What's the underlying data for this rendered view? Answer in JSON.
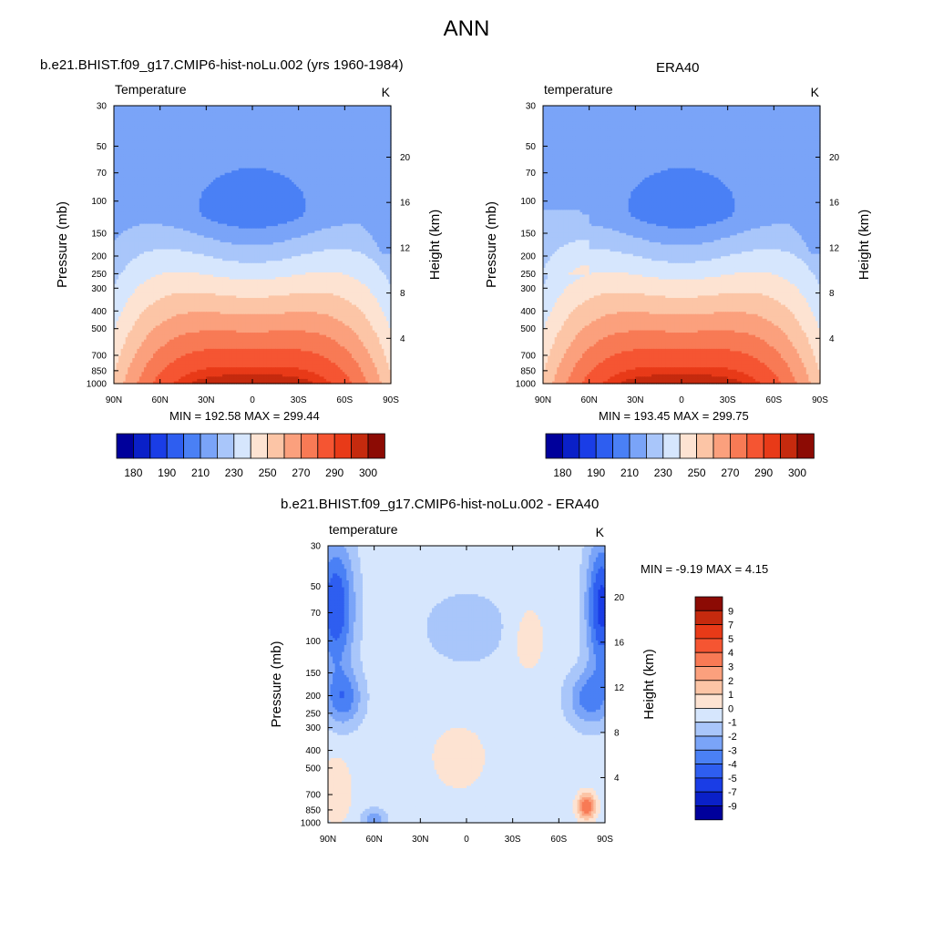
{
  "figure": {
    "title": "ANN"
  },
  "labels": {
    "yleft": "Pressure (mb)",
    "yright": "Height (km)",
    "units": "K"
  },
  "panels": {
    "model": {
      "title": "b.e21.BHIST.f09_g17.CMIP6-hist-noLu.002 (yrs 1960-1984)",
      "field_label": "Temperature",
      "minmax": "MIN = 192.58  MAX = 299.44"
    },
    "obs": {
      "title": "ERA40",
      "field_label": "temperature",
      "minmax": "MIN = 193.45  MAX = 299.75"
    },
    "diff": {
      "title": "b.e21.BHIST.f09_g17.CMIP6-hist-noLu.002 - ERA40",
      "field_label": "temperature",
      "minmax": "MIN =  -9.19  MAX =   4.15"
    }
  },
  "chart_data": [
    {
      "type": "heatmap",
      "title": "b.e21.BHIST.f09_g17.CMIP6-hist-noLu.002 (yrs 1960-1984)",
      "field": "Temperature",
      "units": "K",
      "x_ticks": [
        "90N",
        "60N",
        "30N",
        "0",
        "30S",
        "60S",
        "90S"
      ],
      "x_lat": [
        90,
        60,
        30,
        0,
        -30,
        -60,
        -90
      ],
      "y_ticks": [
        "30",
        "50",
        "70",
        "100",
        "150",
        "200",
        "250",
        "300",
        "400",
        "500",
        "700",
        "850",
        "1000"
      ],
      "y_values": [
        30,
        50,
        70,
        100,
        150,
        200,
        250,
        300,
        400,
        500,
        700,
        850,
        1000
      ],
      "y_scale": "log",
      "ylim": [
        30,
        1000
      ],
      "y2_ticks": [
        "4",
        "8",
        "12",
        "16",
        "20"
      ],
      "ylabel": "Pressure (mb)",
      "y2label": "Height (km)",
      "min": 192.58,
      "max": 299.44,
      "colorbar": {
        "tick_labels": [
          "180",
          "190",
          "210",
          "230",
          "250",
          "270",
          "290",
          "300"
        ],
        "colors": [
          "#00009b",
          "#0a20c8",
          "#1a3de6",
          "#2e5ef0",
          "#4a80f5",
          "#7aa4f8",
          "#a9c6fa",
          "#d6e6fd",
          "#fde3d2",
          "#fcc5a6",
          "#fba07d",
          "#f87a55",
          "#f55532",
          "#e83a18",
          "#c52a0e",
          "#8c0b04"
        ]
      }
    },
    {
      "type": "heatmap",
      "title": "ERA40",
      "field": "temperature",
      "units": "K",
      "x_ticks": [
        "90N",
        "60N",
        "30N",
        "0",
        "30S",
        "60S",
        "90S"
      ],
      "y_ticks": [
        "30",
        "50",
        "70",
        "100",
        "150",
        "200",
        "250",
        "300",
        "400",
        "500",
        "700",
        "850",
        "1000"
      ],
      "y_scale": "log",
      "ylim": [
        30,
        1000
      ],
      "y2_ticks": [
        "4",
        "8",
        "12",
        "16",
        "20"
      ],
      "ylabel": "Pressure (mb)",
      "y2label": "Height (km)",
      "min": 193.45,
      "max": 299.75,
      "colorbar": {
        "tick_labels": [
          "180",
          "190",
          "210",
          "230",
          "250",
          "270",
          "290",
          "300"
        ]
      }
    },
    {
      "type": "heatmap",
      "title": "b.e21.BHIST.f09_g17.CMIP6-hist-noLu.002 - ERA40",
      "field": "temperature",
      "units": "K",
      "x_ticks": [
        "90N",
        "60N",
        "30N",
        "0",
        "30S",
        "60S",
        "90S"
      ],
      "y_ticks": [
        "30",
        "50",
        "70",
        "100",
        "150",
        "200",
        "250",
        "300",
        "400",
        "500",
        "700",
        "850",
        "1000"
      ],
      "y_scale": "log",
      "ylim": [
        30,
        1000
      ],
      "y2_ticks": [
        "4",
        "8",
        "12",
        "16",
        "20"
      ],
      "ylabel": "Pressure (mb)",
      "y2label": "Height (km)",
      "min": -9.19,
      "max": 4.15,
      "colorbar": {
        "tick_labels": [
          "9",
          "7",
          "5",
          "4",
          "3",
          "2",
          "1",
          "0",
          "-1",
          "-2",
          "-3",
          "-4",
          "-5",
          "-7",
          "-9"
        ],
        "colors": [
          "#8c0b04",
          "#c52a0e",
          "#e83a18",
          "#f55532",
          "#f87a55",
          "#fba07d",
          "#fcc5a6",
          "#fde3d2",
          "#d6e6fd",
          "#a9c6fa",
          "#7aa4f8",
          "#4a80f5",
          "#2e5ef0",
          "#1a3de6",
          "#0a20c8",
          "#00009b"
        ]
      }
    }
  ]
}
